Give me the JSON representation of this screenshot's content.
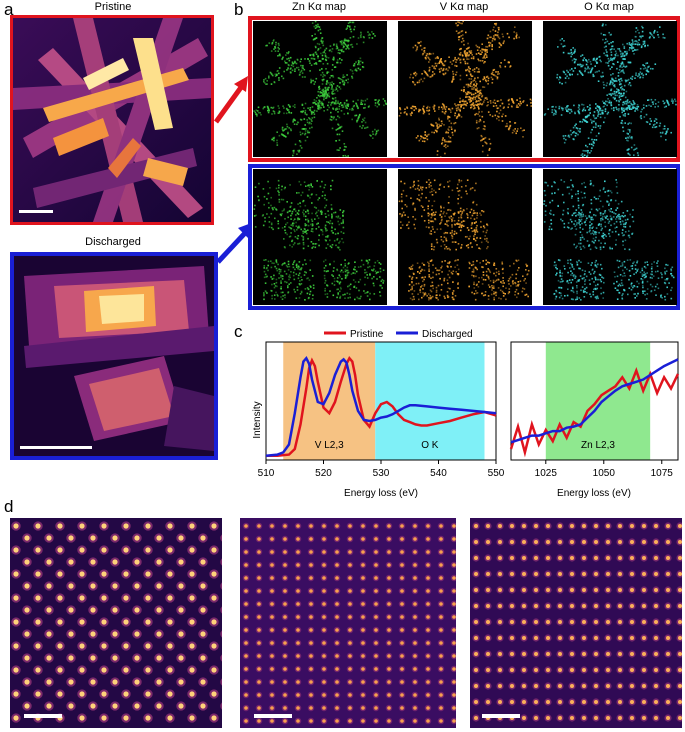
{
  "panels": {
    "a": {
      "label": "a",
      "pristine_title": "Pristine",
      "discharged_title": "Discharged"
    },
    "b": {
      "label": "b",
      "map_titles": [
        "Zn Kα map",
        "V Kα map",
        "O Kα map"
      ],
      "map_elements": [
        "Zn",
        "V",
        "O"
      ],
      "map_colors": [
        "#3ecf3e",
        "#f2a531",
        "#3fd6d6"
      ]
    },
    "c": {
      "label": "c",
      "legend": [
        "Pristine",
        "Discharged"
      ],
      "ylabel": "Intensity",
      "xlabel_left": "Energy loss (eV)",
      "xlabel_right": "Energy loss (eV)",
      "region_labels": [
        "V L2,3",
        "O K",
        "Zn L2,3"
      ]
    },
    "d": {
      "label": "d"
    }
  },
  "colors": {
    "pristine": "#e0141e",
    "discharged": "#1a1fd6",
    "v_region": "#f6c283",
    "o_region": "#7ff0f7",
    "zn_region": "#8fe88f"
  },
  "chart_data": [
    {
      "type": "line",
      "ylabel": "Intensity",
      "xlabel": "Energy loss (eV)",
      "xlim": [
        510,
        550
      ],
      "xticks": [
        510,
        520,
        530,
        540,
        550
      ],
      "shaded_regions": [
        {
          "label": "V L2,3",
          "from": 513,
          "to": 529
        },
        {
          "label": "O K",
          "from": 529,
          "to": 548
        }
      ],
      "series": [
        {
          "name": "Pristine",
          "x": [
            510,
            512,
            514,
            515,
            516,
            517,
            517.5,
            518,
            518.5,
            519,
            520,
            521,
            522,
            523,
            524,
            524.5,
            525,
            525.5,
            526,
            527,
            528,
            529,
            530,
            531,
            532,
            533,
            534,
            535,
            536,
            537,
            538,
            540,
            542,
            544,
            546,
            548,
            550
          ],
          "y": [
            0.02,
            0.02,
            0.03,
            0.08,
            0.3,
            0.62,
            0.8,
            0.87,
            0.82,
            0.68,
            0.45,
            0.4,
            0.5,
            0.68,
            0.84,
            0.89,
            0.86,
            0.74,
            0.56,
            0.34,
            0.28,
            0.4,
            0.48,
            0.5,
            0.46,
            0.39,
            0.34,
            0.32,
            0.3,
            0.29,
            0.29,
            0.31,
            0.33,
            0.36,
            0.39,
            0.41,
            0.38
          ]
        },
        {
          "name": "Discharged",
          "x": [
            510,
            512,
            513,
            514,
            515,
            516,
            516.5,
            517,
            517.5,
            518,
            519,
            520,
            521,
            522,
            523,
            523.5,
            524,
            524.5,
            525,
            526,
            527,
            528,
            529,
            530,
            531,
            532,
            533,
            534,
            535,
            536,
            538,
            540,
            542,
            544,
            546,
            548,
            550
          ],
          "y": [
            0.02,
            0.03,
            0.05,
            0.12,
            0.4,
            0.72,
            0.86,
            0.89,
            0.84,
            0.7,
            0.5,
            0.48,
            0.58,
            0.74,
            0.86,
            0.88,
            0.85,
            0.74,
            0.6,
            0.42,
            0.34,
            0.33,
            0.34,
            0.36,
            0.37,
            0.39,
            0.42,
            0.45,
            0.47,
            0.47,
            0.46,
            0.45,
            0.44,
            0.43,
            0.42,
            0.41,
            0.4
          ]
        }
      ]
    },
    {
      "type": "line",
      "xlabel": "Energy loss (eV)",
      "xlim": [
        1010,
        1082
      ],
      "xticks": [
        1025,
        1050,
        1075
      ],
      "shaded_regions": [
        {
          "label": "Zn L2,3",
          "from": 1025,
          "to": 1070
        }
      ],
      "series": [
        {
          "name": "Pristine",
          "x": [
            1010,
            1013,
            1016,
            1019,
            1022,
            1025,
            1028,
            1031,
            1034,
            1037,
            1040,
            1043,
            1046,
            1049,
            1052,
            1055,
            1058,
            1061,
            1064,
            1067,
            1070,
            1073,
            1076,
            1079,
            1082
          ],
          "y": [
            0.08,
            0.28,
            0.05,
            0.3,
            0.12,
            0.25,
            0.15,
            0.3,
            0.18,
            0.32,
            0.28,
            0.42,
            0.48,
            0.56,
            0.6,
            0.64,
            0.72,
            0.62,
            0.78,
            0.6,
            0.75,
            0.58,
            0.72,
            0.62,
            0.75
          ]
        },
        {
          "name": "Discharged",
          "x": [
            1010,
            1013,
            1016,
            1019,
            1022,
            1025,
            1028,
            1031,
            1034,
            1037,
            1040,
            1043,
            1046,
            1049,
            1052,
            1055,
            1058,
            1061,
            1064,
            1067,
            1070,
            1073,
            1076,
            1079,
            1082
          ],
          "y": [
            0.14,
            0.16,
            0.18,
            0.2,
            0.2,
            0.22,
            0.24,
            0.24,
            0.27,
            0.28,
            0.3,
            0.36,
            0.42,
            0.5,
            0.55,
            0.6,
            0.64,
            0.66,
            0.68,
            0.7,
            0.74,
            0.78,
            0.82,
            0.85,
            0.88
          ]
        }
      ]
    }
  ]
}
